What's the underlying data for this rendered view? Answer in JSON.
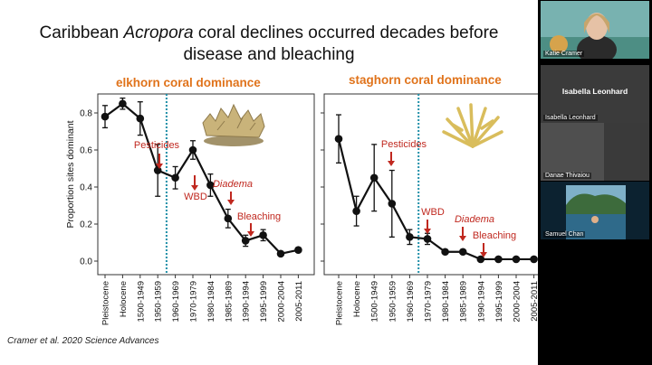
{
  "slide": {
    "title_line1_a": "Caribbean ",
    "title_line1_italic": "Acropora",
    "title_line1_b": " coral declines occurred decades before",
    "title_line2": "disease and bleaching",
    "citation": "Cramer et al. 2020 Science Advances"
  },
  "colors": {
    "accent": "#e0731b",
    "annotation": "#c0281f",
    "reference_line": "#1f8fa8"
  },
  "chart_data": [
    {
      "type": "line",
      "title": "elkhorn coral dominance",
      "ylabel": "Proportion sites dominant",
      "ylim": [
        0,
        0.9
      ],
      "yticks": [
        "0.0",
        "0.2",
        "0.4",
        "0.6",
        "0.8"
      ],
      "x": [
        "Pleistocene",
        "Holocene",
        "1500-1949",
        "1950-1959",
        "1960-1969",
        "1970-1979",
        "1980-1984",
        "1985-1989",
        "1990-1994",
        "1995-1999",
        "2000-2004",
        "2005-2011"
      ],
      "y": [
        0.78,
        0.85,
        0.77,
        0.49,
        0.45,
        0.6,
        0.41,
        0.23,
        0.11,
        0.14,
        0.04,
        0.06
      ],
      "err": [
        0.06,
        0.03,
        0.09,
        0.14,
        0.06,
        0.05,
        0.06,
        0.05,
        0.03,
        0.03,
        0,
        0.01
      ],
      "reference_line_after": "1950-1959",
      "annotations": [
        {
          "label": "Pesticides",
          "at": "1950-1959",
          "italic": false
        },
        {
          "label": "WBD",
          "at": "1970-1979",
          "italic": false
        },
        {
          "label": "Diadema",
          "at": "1980-1984",
          "italic": true
        },
        {
          "label": "Bleaching",
          "at": "1985-1989",
          "italic": false
        }
      ]
    },
    {
      "type": "line",
      "title": "staghorn coral dominance",
      "ylim": [
        0,
        0.9
      ],
      "x": [
        "Pleistocene",
        "Holocene",
        "1500-1949",
        "1950-1959",
        "1960-1969",
        "1970-1979",
        "1980-1984",
        "1985-1989",
        "1990-1994",
        "1995-1999",
        "2000-2004",
        "2005-2011"
      ],
      "y": [
        0.66,
        0.27,
        0.45,
        0.31,
        0.13,
        0.12,
        0.05,
        0.05,
        0.01,
        0.01,
        0.01,
        0.01
      ],
      "err": [
        0.13,
        0.08,
        0.18,
        0.18,
        0.04,
        0.03,
        0,
        0.01,
        0,
        0,
        0,
        0
      ],
      "reference_line_after": "1960-1969",
      "annotations": [
        {
          "label": "Pesticides",
          "at": "1950-1959",
          "italic": false
        },
        {
          "label": "WBD",
          "at": "1970-1979",
          "italic": false
        },
        {
          "label": "Diadema",
          "at": "1985-1989",
          "italic": true
        },
        {
          "label": "Bleaching",
          "at": "1990-1994",
          "italic": false
        }
      ]
    }
  ],
  "participants": [
    {
      "name": "Katie Cramer",
      "video": true
    },
    {
      "name": "Isabella Leonhard",
      "video": false
    },
    {
      "name": "Danae Thivaiou",
      "video": true
    },
    {
      "name": "Samuel Chan",
      "video": true
    }
  ]
}
